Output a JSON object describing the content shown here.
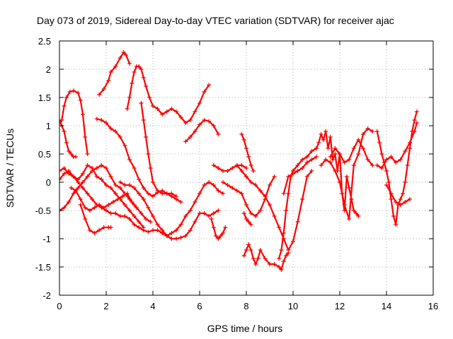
{
  "chart_data": {
    "type": "scatter",
    "title": "Day 073 of 2019, Sidereal Day-to-day VTEC variation (SDTVAR) for receiver ajac",
    "xlabel": "GPS time / hours",
    "ylabel": "SDTVAR / TECUs",
    "xlim": [
      0,
      16
    ],
    "ylim": [
      -2,
      2.5
    ],
    "x_ticks": [
      0,
      2,
      4,
      6,
      8,
      10,
      12,
      14,
      16
    ],
    "x_tick_labels": [
      "0",
      "2",
      "4",
      "6",
      "8",
      "10",
      "12",
      "14",
      "16"
    ],
    "y_ticks": [
      2.5,
      2,
      1.5,
      1,
      0.5,
      0,
      -0.5,
      -1,
      -1.5,
      -2
    ],
    "y_tick_labels": [
      "2.5",
      "2",
      "1.5",
      "1",
      "0.5",
      "0",
      "-0.5",
      "-1",
      "-1.5",
      "-2"
    ],
    "grid": true,
    "marker": "+",
    "color": "#ff0000",
    "series": [
      {
        "name": "s1",
        "x": [
          0,
          0.1,
          0.2,
          0.3,
          0.45,
          0.6,
          0.8,
          0.9,
          1.0,
          1.1,
          1.2
        ],
        "y": [
          1.05,
          1.1,
          1.35,
          1.5,
          1.6,
          1.62,
          1.58,
          1.45,
          1.2,
          0.8,
          0.5
        ]
      },
      {
        "name": "s2",
        "x": [
          0,
          0.1,
          0.2,
          0.3,
          0.4,
          0.5,
          0.6,
          0.7
        ],
        "y": [
          1.1,
          1.0,
          0.9,
          0.7,
          0.55,
          0.5,
          0.45,
          0.45
        ]
      },
      {
        "name": "s3",
        "x": [
          1.7,
          1.9,
          2.1,
          2.2,
          2.4,
          2.6,
          2.75,
          2.85,
          3.0
        ],
        "y": [
          1.55,
          1.65,
          1.8,
          1.95,
          2.05,
          2.2,
          2.3,
          2.25,
          2.1
        ]
      },
      {
        "name": "s4",
        "x": [
          2.9,
          3.0,
          3.1,
          3.2,
          3.3,
          3.4,
          3.5,
          3.6,
          3.7,
          3.85,
          4.0,
          4.2,
          4.4,
          4.6,
          4.8,
          5.0,
          5.2,
          5.4,
          5.6,
          5.8,
          6.0,
          6.2,
          6.4
        ],
        "y": [
          1.3,
          1.5,
          1.75,
          1.95,
          2.05,
          2.05,
          2.0,
          1.85,
          1.7,
          1.5,
          1.35,
          1.3,
          1.2,
          1.25,
          1.3,
          1.25,
          1.15,
          1.05,
          1.1,
          1.25,
          1.4,
          1.6,
          1.72
        ]
      },
      {
        "name": "s5",
        "x": [
          1.6,
          1.8,
          2.0,
          2.2,
          2.4,
          2.6,
          2.8,
          3.0,
          3.2,
          3.4,
          3.6,
          3.8,
          4.0,
          4.2,
          4.4,
          4.6,
          4.8,
          5.0,
          5.2
        ],
        "y": [
          1.12,
          1.1,
          1.05,
          0.95,
          0.9,
          0.8,
          0.65,
          0.4,
          0.25,
          0.05,
          -0.1,
          -0.2,
          -0.25,
          -0.18,
          -0.15,
          -0.2,
          -0.25,
          -0.3,
          -0.35
        ]
      },
      {
        "name": "s6",
        "x": [
          3.5,
          3.6,
          3.7,
          3.8,
          3.9,
          4.0,
          4.2,
          4.4,
          4.6,
          4.8,
          5.0
        ],
        "y": [
          1.4,
          1.1,
          0.8,
          0.5,
          0.25,
          0.0,
          -0.15,
          -0.2,
          -0.2,
          -0.2,
          -0.25
        ]
      },
      {
        "name": "s7",
        "x": [
          5.4,
          5.6,
          5.8,
          6.0,
          6.2,
          6.4,
          6.6,
          6.8
        ],
        "y": [
          0.72,
          0.8,
          0.9,
          1.02,
          1.1,
          1.08,
          1.0,
          0.85
        ]
      },
      {
        "name": "s8",
        "x": [
          0,
          0.2,
          0.4,
          0.6,
          0.8,
          1.0,
          1.2,
          1.4,
          1.6,
          1.8,
          2.0,
          2.2,
          2.4,
          2.6,
          2.8,
          3.0,
          3.2,
          3.4,
          3.6,
          3.8,
          4.0,
          4.2,
          4.4
        ],
        "y": [
          0.05,
          0.15,
          0.2,
          0.1,
          0.0,
          -0.1,
          -0.2,
          -0.3,
          -0.4,
          -0.45,
          -0.5,
          -0.55,
          -0.55,
          -0.6,
          -0.6,
          -0.65,
          -0.75,
          -0.8,
          -0.85,
          -0.88,
          -0.85,
          -0.85,
          -0.9
        ]
      },
      {
        "name": "s9",
        "x": [
          0,
          0.2,
          0.4,
          0.6,
          0.8,
          1.0,
          1.2,
          1.4,
          1.6,
          1.8,
          2.0,
          2.2,
          2.4,
          2.6,
          2.8,
          3.0,
          3.2,
          3.4,
          3.6
        ],
        "y": [
          0.2,
          0.25,
          0.15,
          0.1,
          0.05,
          0.15,
          0.3,
          0.25,
          0.1,
          0.05,
          -0.05,
          -0.1,
          -0.2,
          -0.3,
          -0.4,
          -0.5,
          -0.6,
          -0.7,
          -0.8
        ]
      },
      {
        "name": "s10",
        "x": [
          0,
          0.2,
          0.4,
          0.6,
          0.8,
          1.0,
          1.2,
          1.4,
          1.6,
          1.8,
          2.0,
          2.2,
          2.4,
          2.6,
          2.8,
          3.0,
          3.2
        ],
        "y": [
          -0.5,
          -0.45,
          -0.35,
          -0.2,
          -0.1,
          0.0,
          0.1,
          0.2,
          0.25,
          0.3,
          0.25,
          0.1,
          -0.05,
          -0.1,
          -0.2,
          -0.3,
          -0.4
        ]
      },
      {
        "name": "s11",
        "x": [
          0.5,
          0.7,
          0.9,
          1.1,
          1.3,
          1.5,
          1.7,
          1.9,
          2.1,
          2.3,
          2.5,
          2.7,
          2.9,
          3.1,
          3.3,
          3.5,
          3.7,
          3.9
        ],
        "y": [
          -0.1,
          -0.15,
          -0.3,
          -0.45,
          -0.5,
          -0.45,
          -0.4,
          -0.45,
          -0.4,
          -0.35,
          -0.3,
          -0.25,
          -0.2,
          -0.35,
          -0.45,
          -0.55,
          -0.65,
          -0.7
        ]
      },
      {
        "name": "s12",
        "x": [
          0.9,
          1.1,
          1.3,
          1.5,
          1.7,
          1.9,
          2.1,
          2.2
        ],
        "y": [
          -0.4,
          -0.65,
          -0.85,
          -0.9,
          -0.85,
          -0.8,
          -0.8,
          -0.8
        ]
      },
      {
        "name": "s13",
        "x": [
          2.6,
          2.8,
          3.0,
          3.2,
          3.4,
          3.6,
          3.8,
          4.0,
          4.2,
          4.4,
          4.6,
          4.8,
          5.0,
          5.2,
          5.4,
          5.6,
          5.8,
          6.0,
          6.2,
          6.4,
          6.6,
          6.8
        ],
        "y": [
          0.0,
          -0.05,
          -0.05,
          -0.1,
          -0.2,
          -0.3,
          -0.45,
          -0.6,
          -0.75,
          -0.85,
          -0.95,
          -1.0,
          -1.0,
          -0.98,
          -0.95,
          -0.85,
          -0.7,
          -0.55,
          -0.55,
          -0.6,
          -0.55,
          -0.5
        ]
      },
      {
        "name": "s14",
        "x": [
          4.4,
          4.6,
          4.8,
          5.0,
          5.2,
          5.4,
          5.6,
          5.8,
          6.0,
          6.2,
          6.4,
          6.6,
          6.8,
          7.0
        ],
        "y": [
          -0.9,
          -0.95,
          -0.9,
          -0.85,
          -0.75,
          -0.6,
          -0.5,
          -0.35,
          -0.2,
          -0.05,
          0.0,
          -0.05,
          -0.15,
          -0.2
        ]
      },
      {
        "name": "s15",
        "x": [
          6.5,
          6.6,
          6.7,
          6.8,
          6.9,
          7.0,
          7.1
        ],
        "y": [
          -0.65,
          -0.8,
          -0.95,
          -1.0,
          -0.95,
          -0.9,
          -0.8
        ]
      },
      {
        "name": "s16",
        "x": [
          6.6,
          6.8,
          7.0,
          7.2,
          7.4,
          7.6,
          7.8,
          8.0
        ],
        "y": [
          0.3,
          0.25,
          0.2,
          0.2,
          0.25,
          0.3,
          0.3,
          0.25
        ]
      },
      {
        "name": "s17",
        "x": [
          7.0,
          7.2,
          7.4,
          7.6,
          7.8,
          8.0,
          8.2,
          8.4,
          8.6,
          8.8,
          9.0,
          9.2
        ],
        "y": [
          0.0,
          -0.05,
          -0.1,
          -0.15,
          -0.2,
          -0.4,
          -0.55,
          -0.6,
          -0.5,
          -0.3,
          -0.05,
          0.1
        ]
      },
      {
        "name": "s18",
        "x": [
          7.8,
          7.9,
          8.0,
          8.1,
          8.2,
          8.3
        ],
        "y": [
          0.85,
          0.75,
          0.6,
          0.45,
          0.3,
          0.2
        ]
      },
      {
        "name": "s19",
        "x": [
          7.6,
          7.8,
          8.0,
          8.2,
          8.4,
          8.6,
          8.8,
          9.0,
          9.2,
          9.4,
          9.6,
          9.8,
          10.0,
          10.2,
          10.4,
          10.6,
          10.8
        ],
        "y": [
          0.3,
          0.2,
          0.1,
          0.0,
          -0.05,
          -0.15,
          -0.25,
          -0.4,
          -0.6,
          -0.8,
          -1.0,
          -1.2,
          -1.05,
          -0.7,
          -0.3,
          0.1,
          0.2
        ]
      },
      {
        "name": "s20",
        "x": [
          7.9,
          8.0,
          8.1,
          8.2,
          8.3,
          8.4,
          8.5,
          8.6,
          8.8,
          9.0,
          9.2,
          9.4,
          9.5,
          9.6,
          9.7,
          9.8
        ],
        "y": [
          -1.3,
          -1.2,
          -1.1,
          -1.2,
          -1.35,
          -1.45,
          -1.35,
          -1.2,
          -1.35,
          -1.45,
          -1.45,
          -1.5,
          -1.55,
          -1.4,
          -1.3,
          -1.25
        ]
      },
      {
        "name": "s21",
        "x": [
          7.9,
          8.0,
          8.1,
          8.2
        ],
        "y": [
          -0.55,
          -0.65,
          -0.7,
          -0.75
        ]
      },
      {
        "name": "s22",
        "x": [
          9.4,
          9.5,
          9.6,
          9.7,
          9.8,
          9.9,
          10.0,
          10.2,
          10.4,
          10.6,
          10.8,
          11.0
        ],
        "y": [
          -1.35,
          -1.2,
          -0.9,
          -0.5,
          -0.2,
          0.1,
          0.2,
          0.3,
          0.4,
          0.45,
          0.55,
          0.6
        ]
      },
      {
        "name": "s23",
        "x": [
          9.6,
          9.8,
          10.0,
          10.2,
          10.4,
          10.6,
          10.8,
          11.0
        ],
        "y": [
          -0.2,
          0.1,
          0.15,
          0.2,
          0.25,
          0.35,
          0.4,
          0.45
        ]
      },
      {
        "name": "s24",
        "x": [
          11.0,
          11.1,
          11.2,
          11.3,
          11.4,
          11.5,
          11.6,
          11.7,
          11.8,
          11.9,
          12.0,
          12.1,
          12.2,
          12.3,
          12.4,
          12.5,
          12.6,
          12.7,
          12.8
        ],
        "y": [
          0.6,
          0.7,
          0.85,
          0.75,
          0.9,
          0.6,
          0.8,
          0.4,
          0.5,
          0.2,
          0.5,
          -0.2,
          -0.5,
          0.1,
          -0.1,
          -0.3,
          -0.5,
          -0.55,
          -0.6
        ]
      },
      {
        "name": "s25",
        "x": [
          11.2,
          11.4,
          11.6,
          11.8,
          12.0,
          12.2,
          12.4,
          12.6,
          12.8,
          13.0,
          13.2,
          13.4
        ],
        "y": [
          0.3,
          0.4,
          0.35,
          0.2,
          0.0,
          -0.4,
          -0.65,
          0.3,
          0.5,
          0.85,
          0.95,
          0.9
        ]
      },
      {
        "name": "s26",
        "x": [
          11.6,
          11.8,
          12.0,
          12.2,
          12.4,
          12.6,
          12.8,
          13.0,
          13.2,
          13.4
        ],
        "y": [
          0.45,
          0.6,
          0.5,
          0.35,
          0.4,
          0.6,
          0.75,
          0.6,
          0.4,
          0.3
        ]
      },
      {
        "name": "s27",
        "x": [
          13.6,
          13.7,
          13.8,
          13.9,
          14.0,
          14.1,
          14.2,
          14.3,
          14.4,
          14.5,
          14.6,
          14.7,
          14.8,
          14.9,
          15.0,
          15.1,
          15.2,
          15.3
        ],
        "y": [
          0.9,
          0.7,
          0.5,
          0.35,
          0.2,
          0.0,
          -0.3,
          -0.6,
          -0.75,
          -0.4,
          -0.3,
          -0.2,
          0.0,
          0.3,
          0.6,
          0.9,
          1.1,
          1.25
        ]
      },
      {
        "name": "s28",
        "x": [
          13.6,
          13.8,
          14.0,
          14.2,
          14.4,
          14.6,
          14.8,
          15.0,
          15.2,
          15.3
        ],
        "y": [
          0.3,
          0.25,
          0.4,
          0.45,
          0.35,
          0.4,
          0.55,
          0.7,
          0.9,
          1.05
        ]
      },
      {
        "name": "s29",
        "x": [
          14.0,
          14.2,
          14.4,
          14.6,
          14.8,
          15.0
        ],
        "y": [
          -0.05,
          -0.2,
          -0.35,
          -0.4,
          -0.35,
          -0.3
        ]
      }
    ]
  }
}
